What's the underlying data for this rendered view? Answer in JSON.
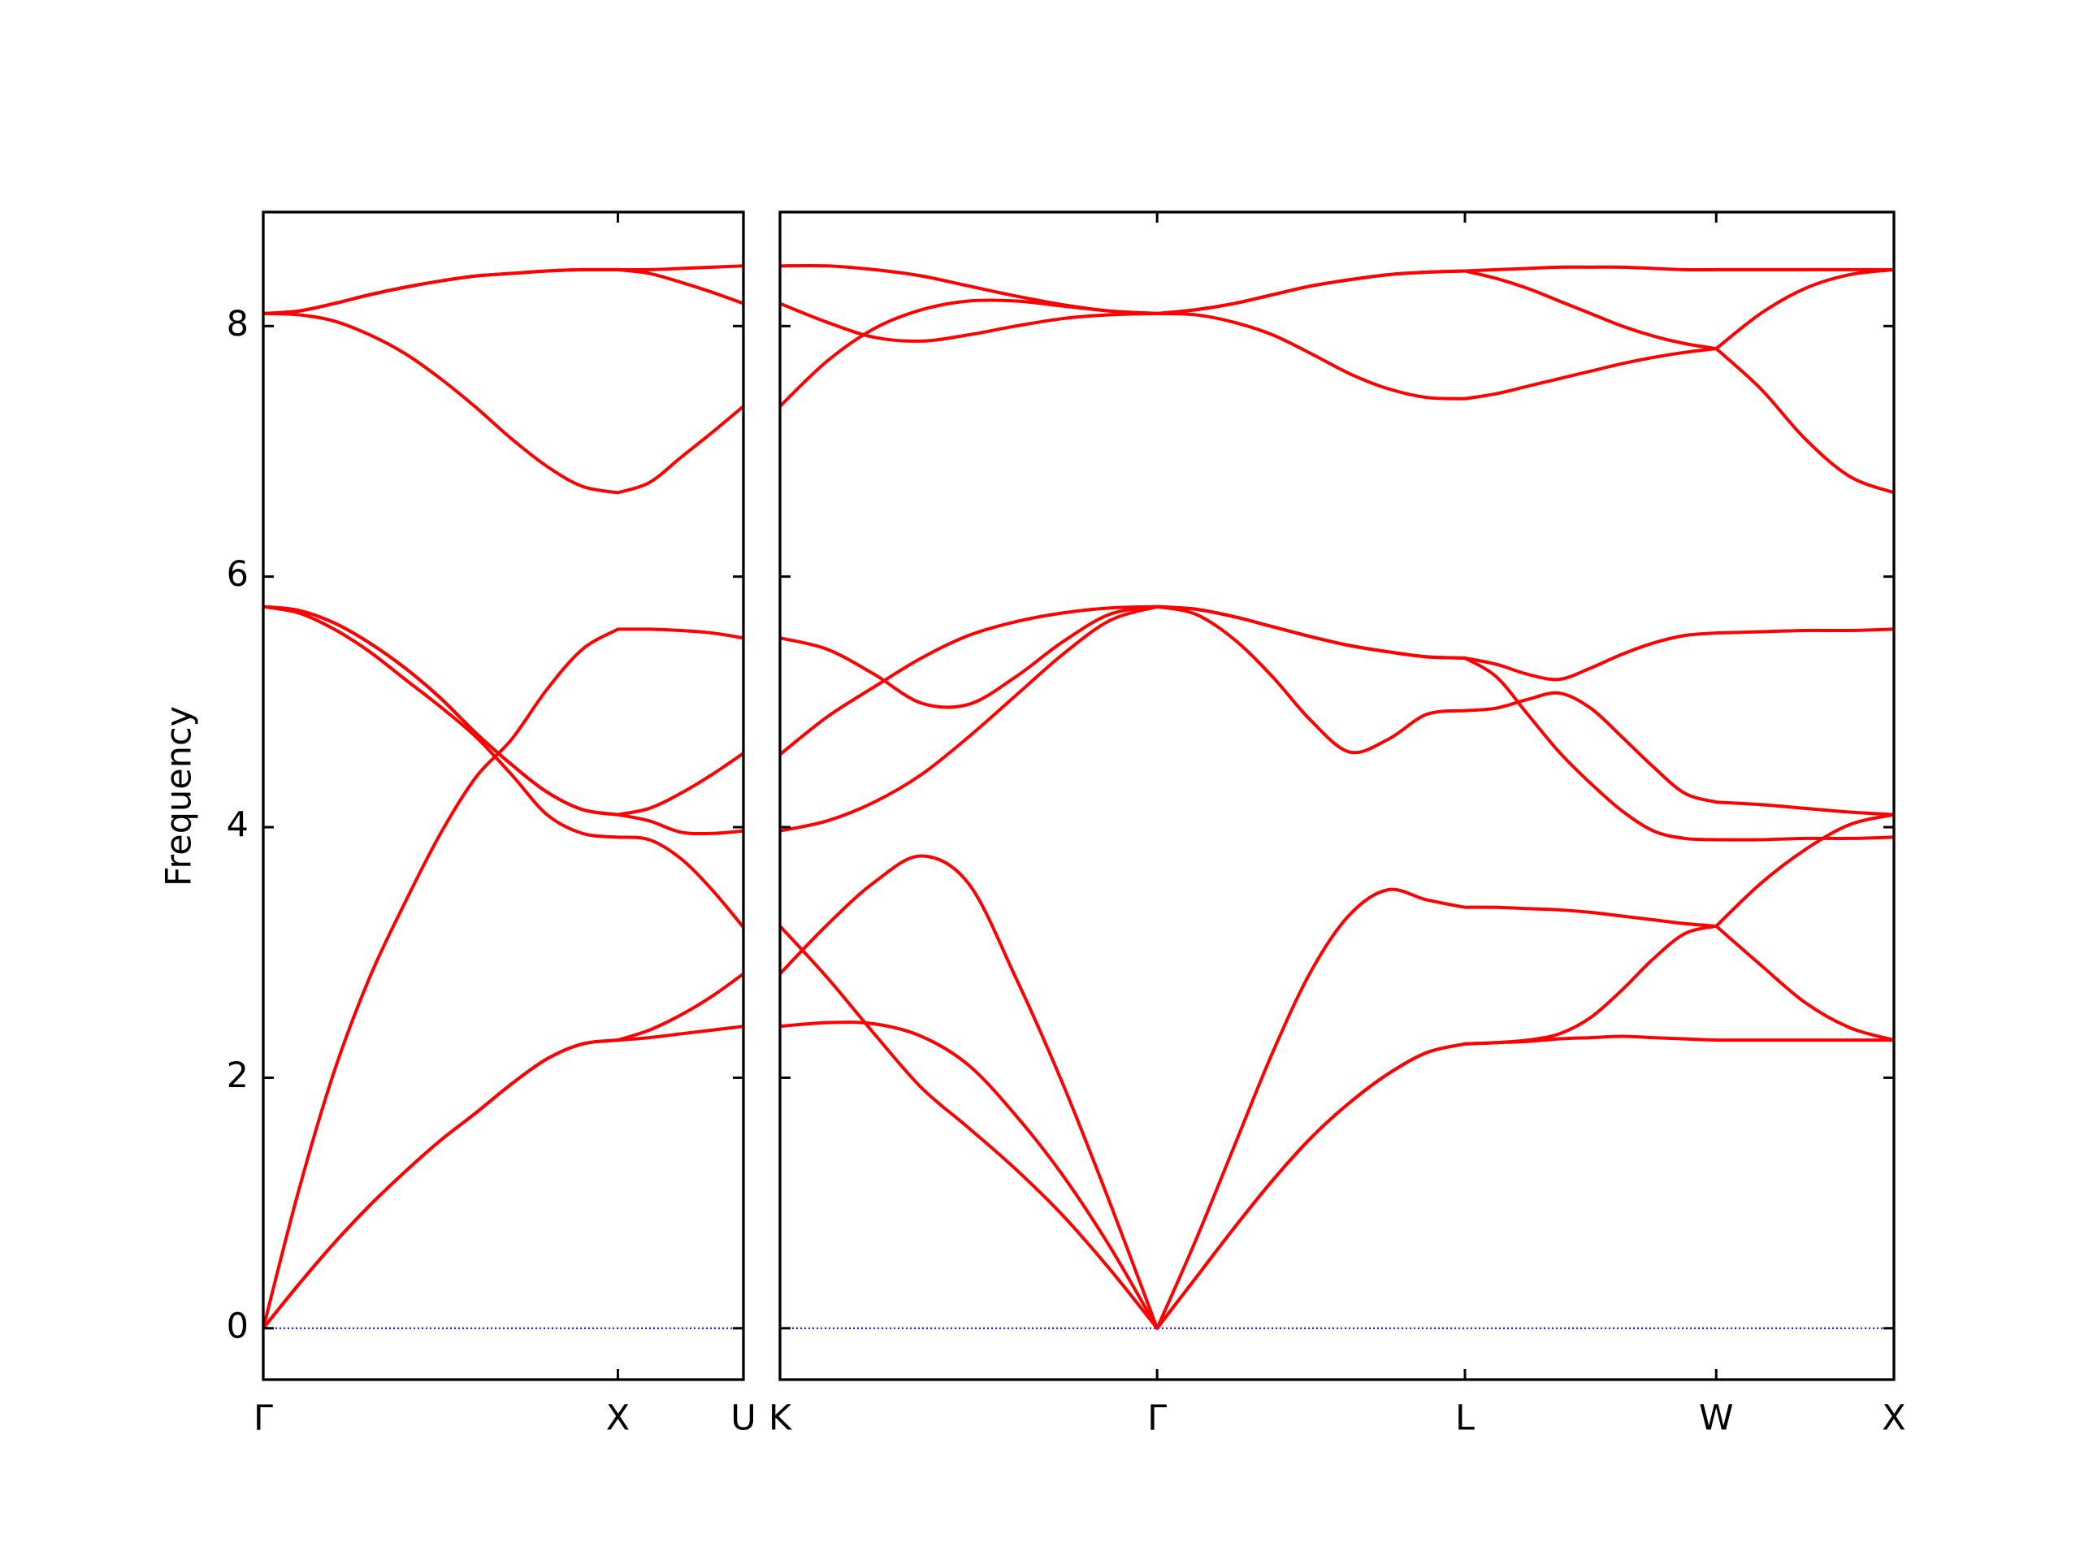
{
  "chart_data": [
    {
      "type": "line",
      "ylabel": "Frequency",
      "color": "#ff0000",
      "show_ytick_labels": true,
      "hline": 0,
      "hline_color": "#0000ff",
      "x": [
        0,
        0.1,
        0.2,
        0.3,
        0.4,
        0.5,
        0.6,
        0.7,
        0.8,
        0.9,
        1,
        1.0885,
        1.177,
        1.2655,
        1.354
      ],
      "xlim": [
        0,
        1.354
      ],
      "xticks": [
        {
          "value": 0,
          "label": "Γ"
        },
        {
          "value": 1,
          "label": "X"
        },
        {
          "value": 1.354,
          "label": "U"
        }
      ],
      "ylim": [
        -0.41,
        8.91
      ],
      "yticks": [
        0,
        2,
        4,
        6,
        8
      ],
      "series": [
        {
          "values": [
            0,
            0.35,
            0.68,
            0.98,
            1.25,
            1.5,
            1.72,
            1.95,
            2.15,
            2.27,
            2.3,
            2.32,
            2.35,
            2.38,
            2.41
          ]
        },
        {
          "values": [
            0,
            0.35,
            0.68,
            0.98,
            1.25,
            1.5,
            1.72,
            1.95,
            2.15,
            2.27,
            2.3,
            2.38,
            2.5,
            2.65,
            2.83
          ]
        },
        {
          "values": [
            0,
            1.1,
            2.05,
            2.8,
            3.4,
            3.95,
            4.4,
            4.7,
            5.1,
            5.42,
            5.58,
            5.58,
            5.57,
            5.55,
            5.51
          ]
        },
        {
          "values": [
            5.76,
            5.73,
            5.63,
            5.47,
            5.27,
            5.03,
            4.75,
            4.5,
            4.28,
            4.14,
            4.1,
            4.05,
            3.96,
            3.95,
            3.97
          ]
        },
        {
          "values": [
            5.76,
            5.73,
            5.63,
            5.47,
            5.27,
            5.03,
            4.75,
            4.5,
            4.28,
            4.14,
            4.1,
            4.15,
            4.27,
            4.42,
            4.59
          ]
        },
        {
          "values": [
            5.76,
            5.71,
            5.58,
            5.4,
            5.18,
            4.96,
            4.72,
            4.42,
            4.1,
            3.95,
            3.92,
            3.9,
            3.75,
            3.5,
            3.2
          ]
        },
        {
          "values": [
            8.1,
            8.09,
            8.04,
            7.93,
            7.78,
            7.58,
            7.35,
            7.1,
            6.88,
            6.72,
            6.67,
            6.75,
            6.95,
            7.15,
            7.36
          ]
        },
        {
          "values": [
            8.1,
            8.12,
            8.18,
            8.25,
            8.31,
            8.36,
            8.4,
            8.42,
            8.44,
            8.45,
            8.45,
            8.45,
            8.46,
            8.47,
            8.48
          ]
        },
        {
          "values": [
            8.1,
            8.12,
            8.18,
            8.25,
            8.31,
            8.36,
            8.4,
            8.42,
            8.44,
            8.45,
            8.45,
            8.42,
            8.35,
            8.27,
            8.18
          ]
        }
      ]
    },
    {
      "type": "line",
      "color": "#ff0000",
      "show_ytick_labels": false,
      "hline": 0,
      "hline_color": "#0000ff",
      "x": [
        0,
        0.1326,
        0.2653,
        0.3979,
        0.5305,
        0.6631,
        0.7958,
        0.9284,
        1.061,
        1.1693,
        1.2775,
        1.3858,
        1.494,
        1.6023,
        1.7105,
        1.8188,
        1.927,
        2.0154,
        2.1038,
        2.1921,
        2.2805,
        2.3689,
        2.4573,
        2.5456,
        2.634,
        2.759,
        2.884,
        3.009,
        3.134
      ],
      "xlim": [
        0,
        3.134
      ],
      "xticks": [
        {
          "value": 0,
          "label": "K"
        },
        {
          "value": 1.061,
          "label": "Γ"
        },
        {
          "value": 1.927,
          "label": "L"
        },
        {
          "value": 2.634,
          "label": "W"
        },
        {
          "value": 3.134,
          "label": "X"
        }
      ],
      "ylim": [
        -0.41,
        8.91
      ],
      "yticks": [
        0,
        2,
        4,
        6,
        8
      ],
      "series": [
        {
          "values": [
            2.41,
            2.44,
            2.43,
            2.33,
            2.1,
            1.7,
            1.22,
            0.65,
            0,
            0.4,
            0.8,
            1.18,
            1.52,
            1.8,
            2.03,
            2.2,
            2.27,
            2.28,
            2.29,
            2.31,
            2.32,
            2.33,
            2.32,
            2.31,
            2.3,
            2.3,
            2.3,
            2.3,
            2.3
          ]
        },
        {
          "values": [
            3.21,
            2.8,
            2.35,
            1.92,
            1.6,
            1.27,
            0.9,
            0.47,
            0,
            0.4,
            0.8,
            1.18,
            1.52,
            1.8,
            2.03,
            2.2,
            2.27,
            2.28,
            2.3,
            2.35,
            2.48,
            2.7,
            2.95,
            3.15,
            3.21,
            2.9,
            2.6,
            2.4,
            2.3
          ]
        },
        {
          "values": [
            2.83,
            3.22,
            3.56,
            3.77,
            3.55,
            2.8,
            1.95,
            1.0,
            0,
            0.7,
            1.45,
            2.2,
            2.85,
            3.3,
            3.5,
            3.42,
            3.36,
            3.36,
            3.35,
            3.34,
            3.32,
            3.29,
            3.26,
            3.23,
            3.21,
            3.55,
            3.82,
            4.02,
            4.1
          ]
        },
        {
          "values": [
            3.97,
            4.05,
            4.2,
            4.42,
            4.72,
            5.05,
            5.38,
            5.65,
            5.76,
            5.7,
            5.5,
            5.2,
            4.85,
            4.6,
            4.7,
            4.9,
            4.93,
            4.95,
            5.02,
            5.07,
            4.95,
            4.72,
            4.48,
            4.27,
            4.2,
            4.18,
            4.15,
            4.12,
            4.1
          ]
        },
        {
          "values": [
            4.58,
            4.88,
            5.12,
            5.35,
            5.53,
            5.64,
            5.71,
            5.75,
            5.76,
            5.74,
            5.68,
            5.6,
            5.52,
            5.45,
            5.4,
            5.36,
            5.35,
            5.2,
            4.9,
            4.6,
            4.35,
            4.13,
            3.97,
            3.91,
            3.9,
            3.9,
            3.91,
            3.91,
            3.92
          ]
        },
        {
          "values": [
            5.51,
            5.42,
            5.22,
            4.99,
            4.98,
            5.2,
            5.48,
            5.7,
            5.76,
            5.74,
            5.68,
            5.6,
            5.52,
            5.45,
            5.4,
            5.36,
            5.35,
            5.3,
            5.22,
            5.18,
            5.27,
            5.38,
            5.47,
            5.53,
            5.55,
            5.56,
            5.57,
            5.57,
            5.58
          ]
        },
        {
          "values": [
            7.36,
            7.72,
            7.98,
            8.13,
            8.2,
            8.2,
            8.16,
            8.12,
            8.1,
            8.09,
            8.03,
            7.93,
            7.78,
            7.62,
            7.5,
            7.43,
            7.42,
            7.46,
            7.52,
            7.58,
            7.64,
            7.7,
            7.75,
            7.79,
            7.82,
            7.5,
            7.1,
            6.8,
            6.67
          ]
        },
        {
          "values": [
            8.18,
            8.03,
            7.91,
            7.88,
            7.93,
            8.0,
            8.06,
            8.09,
            8.1,
            8.13,
            8.18,
            8.25,
            8.32,
            8.37,
            8.41,
            8.43,
            8.44,
            8.38,
            8.3,
            8.2,
            8.1,
            8.0,
            7.92,
            7.86,
            7.82,
            8.1,
            8.3,
            8.41,
            8.45
          ]
        },
        {
          "values": [
            8.48,
            8.48,
            8.45,
            8.4,
            8.32,
            8.24,
            8.17,
            8.12,
            8.1,
            8.13,
            8.18,
            8.25,
            8.32,
            8.37,
            8.41,
            8.43,
            8.44,
            8.45,
            8.46,
            8.47,
            8.47,
            8.47,
            8.46,
            8.45,
            8.45,
            8.45,
            8.45,
            8.45,
            8.45
          ]
        }
      ]
    }
  ]
}
